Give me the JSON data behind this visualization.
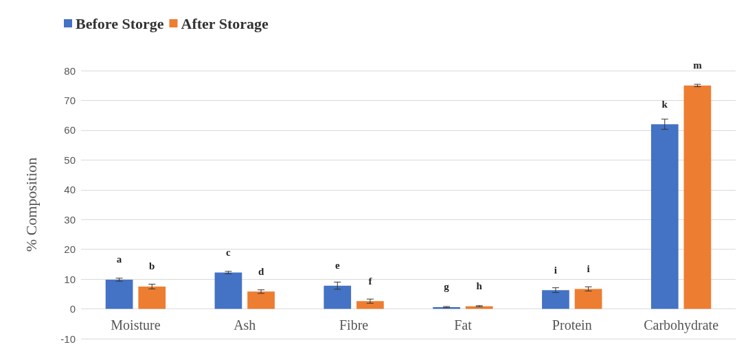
{
  "chart_data": {
    "type": "bar",
    "ylabel": "% Composition",
    "categories": [
      "Moisture",
      "Ash",
      "Fibre",
      "Fat",
      "Protein",
      "Carbohydrate"
    ],
    "series": [
      {
        "name": "Before Storge",
        "color": "#4472c4",
        "values": [
          9.8,
          12.2,
          7.8,
          0.6,
          6.3,
          62
        ],
        "errors": [
          0.5,
          0.4,
          1.2,
          0.2,
          0.8,
          1.7
        ],
        "value_labels": [
          "a",
          "c",
          "e",
          "g",
          "i",
          "k"
        ]
      },
      {
        "name": "After Storage",
        "color": "#ed7d31",
        "values": [
          7.5,
          5.8,
          2.6,
          0.9,
          6.7,
          75
        ],
        "errors": [
          0.8,
          0.6,
          0.7,
          0.2,
          0.7,
          0.4
        ],
        "value_labels": [
          "b",
          "d",
          "f",
          "h",
          "i",
          "m"
        ]
      }
    ],
    "ylim": [
      -10,
      80
    ],
    "yticks": [
      -10,
      0,
      10,
      20,
      30,
      40,
      50,
      60,
      70,
      80
    ],
    "grid": "y",
    "legend": "top left"
  }
}
